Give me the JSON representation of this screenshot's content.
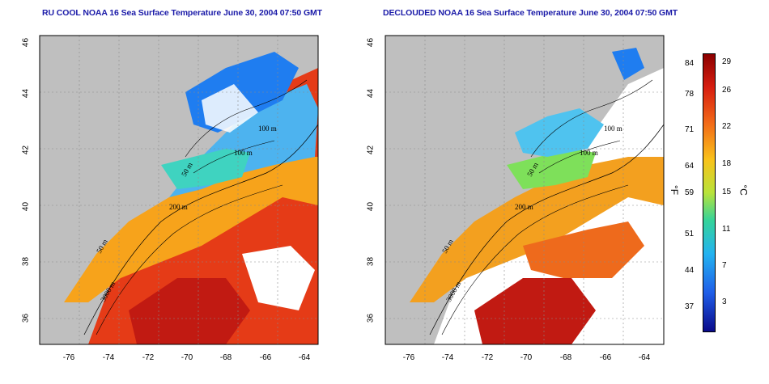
{
  "panels": [
    {
      "id": "left",
      "title": "RU COOL NOAA 16 Sea Surface Temperature June 30, 2004 07:50 GMT",
      "contour_labels": [
        "100 m",
        "100 m",
        "50 m",
        "200 m",
        "50 m",
        "3000 m"
      ]
    },
    {
      "id": "right",
      "title": "DECLOUDED NOAA 16 Sea Surface Temperature June 30, 2004 07:50 GMT",
      "contour_labels": [
        "100 m",
        "100 m",
        "50 m",
        "200 m",
        "50 m",
        "3000 m"
      ]
    }
  ],
  "axes": {
    "lat_ticks": [
      "46",
      "44",
      "42",
      "40",
      "38",
      "36"
    ],
    "lon_ticks": [
      "-76",
      "-74",
      "-72",
      "-70",
      "-68",
      "-66",
      "-64"
    ]
  },
  "colorbar": {
    "fahrenheit_ticks": [
      "84",
      "78",
      "71",
      "64",
      "59",
      "51",
      "44",
      "37"
    ],
    "celsius_ticks": [
      "29",
      "26",
      "22",
      "18",
      "15",
      "11",
      "7",
      "3"
    ],
    "unit_f": "°F",
    "unit_c": "°C"
  },
  "colors": {
    "land": "#bfbfbf",
    "title": "#1a1aa8",
    "warm": "#d71e10",
    "cold": "#1e5af0"
  }
}
